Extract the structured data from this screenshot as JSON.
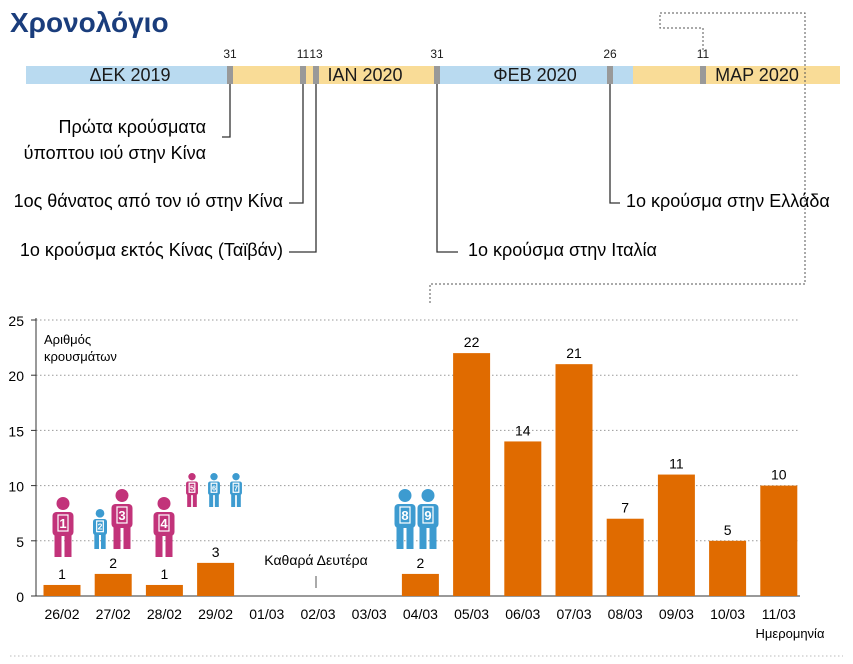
{
  "title": "Χρονολόγιο",
  "timeline": {
    "months": [
      {
        "label": "ΔΕΚ 2019",
        "color": "#b9daf0"
      },
      {
        "label": "ΙΑΝ 2020",
        "color": "#f9dc97"
      },
      {
        "label": "ΦΕΒ 2020",
        "color": "#b9daf0"
      },
      {
        "label": "ΜΑΡ 2020",
        "color": "#f9dc97"
      }
    ],
    "ticks": [
      "31",
      "11",
      "13",
      "31",
      "26",
      "11"
    ],
    "events": [
      "Πρώτα κρούσματα ύποπτου ιού στην Κίνα",
      "1ος θάνατος από τον ιό στην Κίνα",
      "1ο κρούσμα εκτός Κίνας (Ταϊβάν)",
      "1ο κρούσμα στην Ιταλία",
      "1ο κρούσμα στην Ελλάδα"
    ]
  },
  "chart_data": {
    "type": "bar",
    "ylabel": "Αριθμός κρουσμάτων",
    "xlabel": "Ημερομηνία",
    "categories": [
      "26/02",
      "27/02",
      "28/02",
      "29/02",
      "01/03",
      "02/03",
      "03/03",
      "04/03",
      "05/03",
      "06/03",
      "07/03",
      "08/03",
      "09/03",
      "10/03",
      "11/03"
    ],
    "values": [
      1,
      2,
      1,
      3,
      0,
      0,
      0,
      2,
      22,
      14,
      21,
      7,
      11,
      5,
      10
    ],
    "ylim": [
      0,
      25
    ],
    "yticks": [
      0,
      5,
      10,
      15,
      20,
      25
    ],
    "grid": true,
    "annotation": "Καθαρά Δευτέρα",
    "patients": [
      "1",
      "2",
      "3",
      "4",
      "5",
      "6",
      "7",
      "8",
      "9"
    ],
    "colors": {
      "bar": "#e06b00",
      "female": "#c2337a",
      "male": "#3d9bd0",
      "title": "#1a3d7c"
    }
  }
}
